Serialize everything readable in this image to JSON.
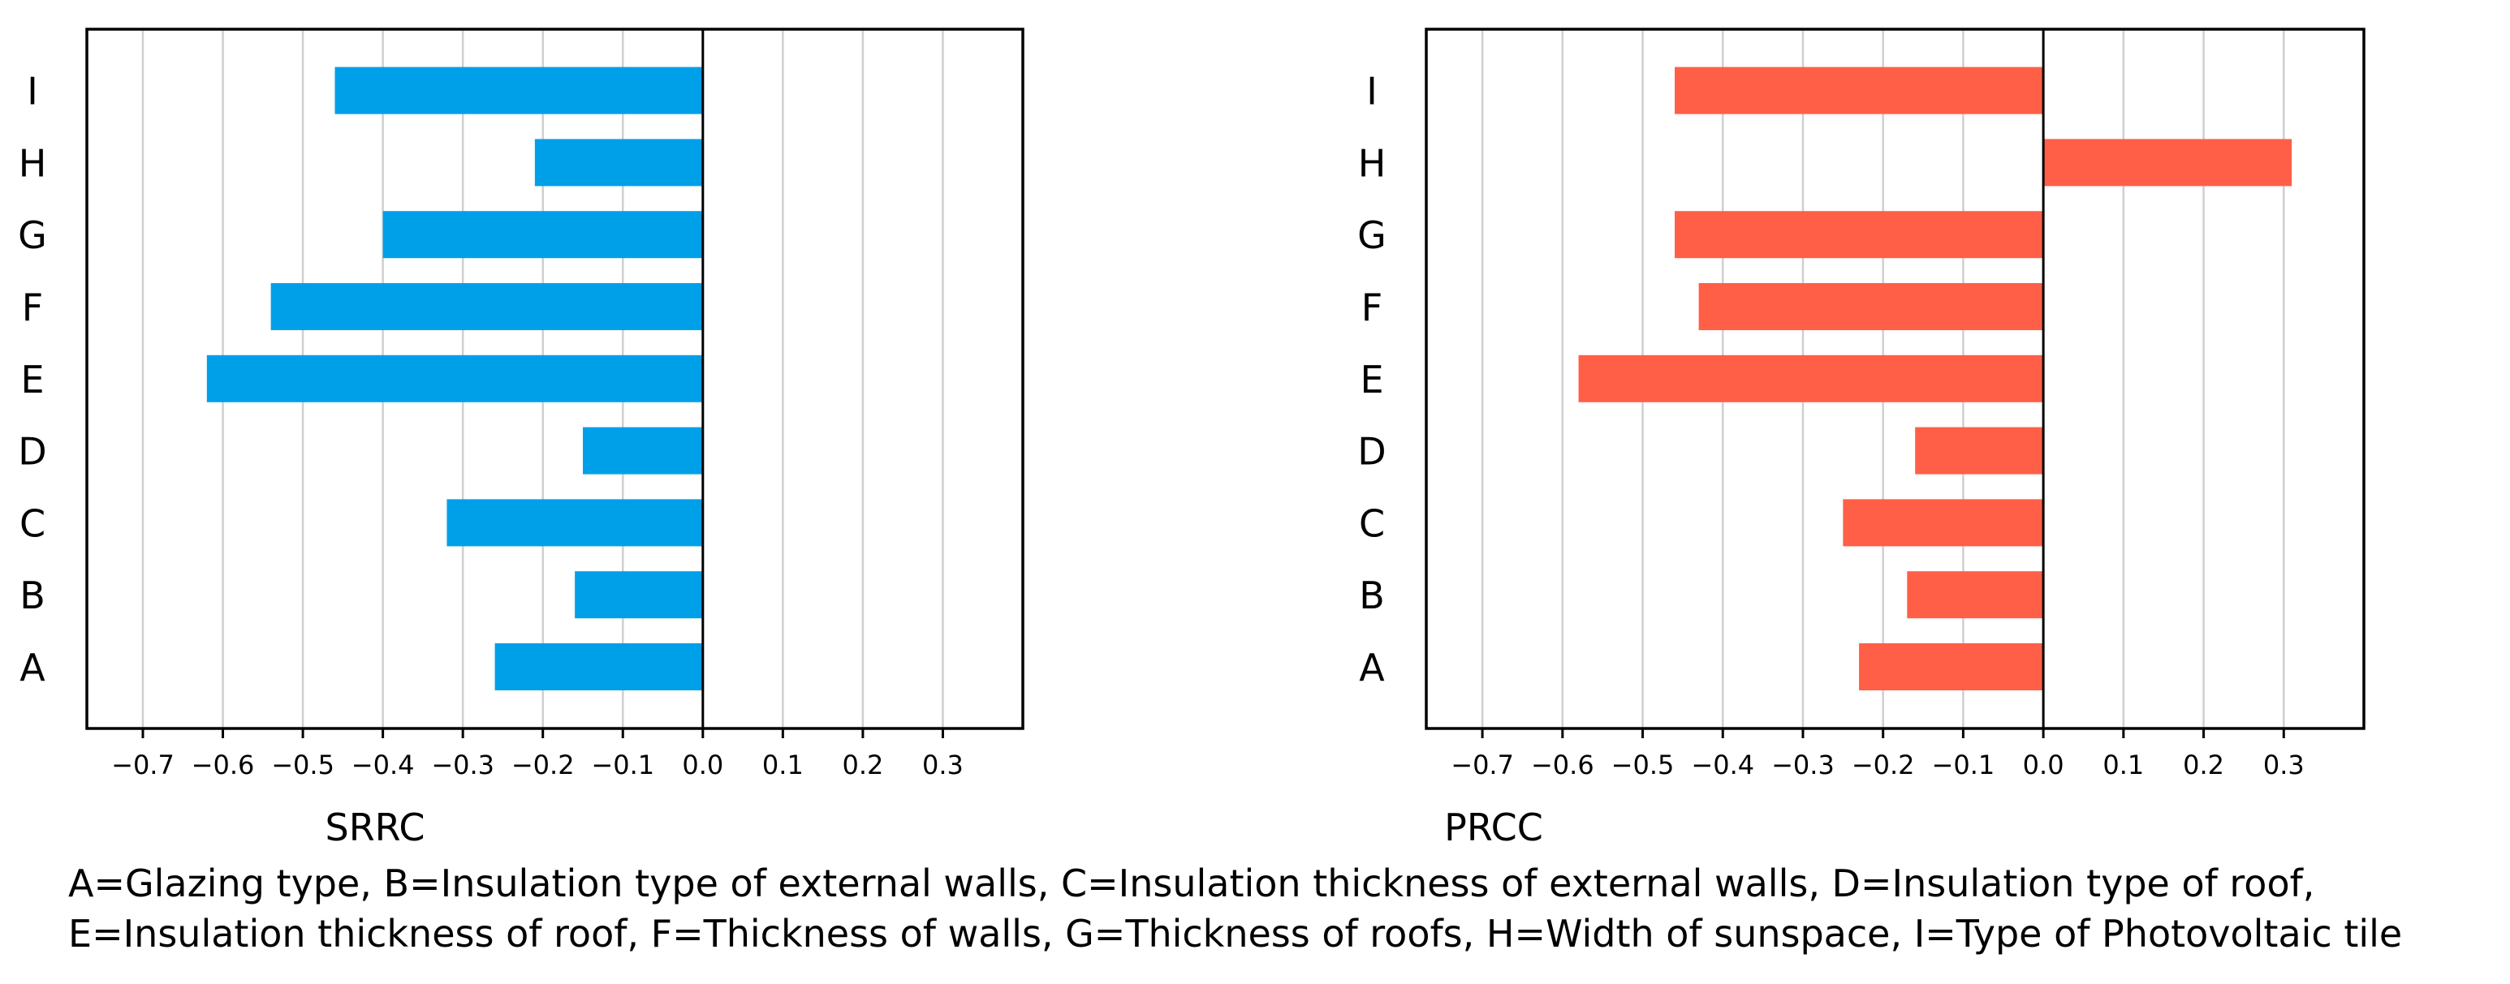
{
  "chart_data": [
    {
      "type": "bar",
      "orientation": "horizontal",
      "title": "SRRC",
      "categories": [
        "A",
        "B",
        "C",
        "D",
        "E",
        "F",
        "G",
        "H",
        "I"
      ],
      "values": [
        -0.26,
        -0.16,
        -0.32,
        -0.15,
        -0.62,
        -0.54,
        -0.4,
        -0.21,
        -0.46
      ],
      "color": "#00a0e9",
      "xlim": [
        -0.77,
        0.4
      ],
      "xticks": [
        -0.7,
        -0.6,
        -0.5,
        -0.4,
        -0.3,
        -0.2,
        -0.1,
        0.0,
        0.1,
        0.2,
        0.3
      ],
      "xtick_labels": [
        "−0.7",
        "−0.6",
        "−0.5",
        "−0.4",
        "−0.3",
        "−0.2",
        "−0.1",
        "0.0",
        "0.1",
        "0.2",
        "0.3"
      ],
      "grid": "vertical"
    },
    {
      "type": "bar",
      "orientation": "horizontal",
      "title": "PRCC",
      "categories": [
        "A",
        "B",
        "C",
        "D",
        "E",
        "F",
        "G",
        "H",
        "I"
      ],
      "values": [
        -0.23,
        -0.17,
        -0.25,
        -0.16,
        -0.58,
        -0.43,
        -0.46,
        0.31,
        -0.46
      ],
      "color": "#ff5e47",
      "xlim": [
        -0.77,
        0.4
      ],
      "xticks": [
        -0.7,
        -0.6,
        -0.5,
        -0.4,
        -0.3,
        -0.2,
        -0.1,
        0.0,
        0.1,
        0.2,
        0.3
      ],
      "xtick_labels": [
        "−0.7",
        "−0.6",
        "−0.5",
        "−0.4",
        "−0.3",
        "−0.2",
        "−0.1",
        "0.0",
        "0.1",
        "0.2",
        "0.3"
      ],
      "grid": "vertical"
    }
  ],
  "caption": {
    "line1": "A=Glazing type, B=Insulation type of external walls, C=Insulation thickness of external walls, D=Insulation type of roof,",
    "line2": "E=Insulation thickness of roof, F=Thickness of walls, G=Thickness of roofs, H=Width of sunspace, I=Type of Photovoltaic tile"
  }
}
